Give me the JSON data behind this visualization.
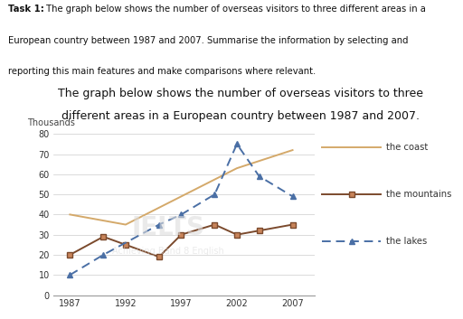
{
  "title_line1": "The graph below shows the number of overseas visitors to three",
  "title_line2": "different areas in a European country between 1987 and 2007.",
  "task_line1": "Task 1: The graph below shows the number of overseas visitors to three different areas in a",
  "task_line2": "European country between 1987 and 2007. Summarise the information by selecting and",
  "task_line3": "reporting this main features and make comparisons where relevant.",
  "task_bold": "Task 1:",
  "ylabel": "Thousands",
  "years": [
    1987,
    1990,
    1992,
    1995,
    1997,
    2000,
    2002,
    2004,
    2007
  ],
  "coast": [
    40,
    null,
    35,
    null,
    49,
    null,
    63,
    null,
    72
  ],
  "mountains": [
    20,
    29,
    25,
    19,
    30,
    35,
    30,
    32,
    35
  ],
  "lakes": [
    10,
    20,
    null,
    35,
    40,
    50,
    75,
    59,
    49
  ],
  "coast_color": "#d4a96a",
  "mountains_color": "#7b4a2d",
  "lakes_color": "#4a6fa5",
  "bg_color": "#ffffff",
  "ylim": [
    0,
    80
  ],
  "yticks": [
    0,
    10,
    20,
    30,
    40,
    50,
    60,
    70,
    80
  ],
  "xticks": [
    1987,
    1992,
    1997,
    2002,
    2007
  ],
  "legend_labels": [
    "the coast",
    "the mountains",
    "the lakes"
  ]
}
